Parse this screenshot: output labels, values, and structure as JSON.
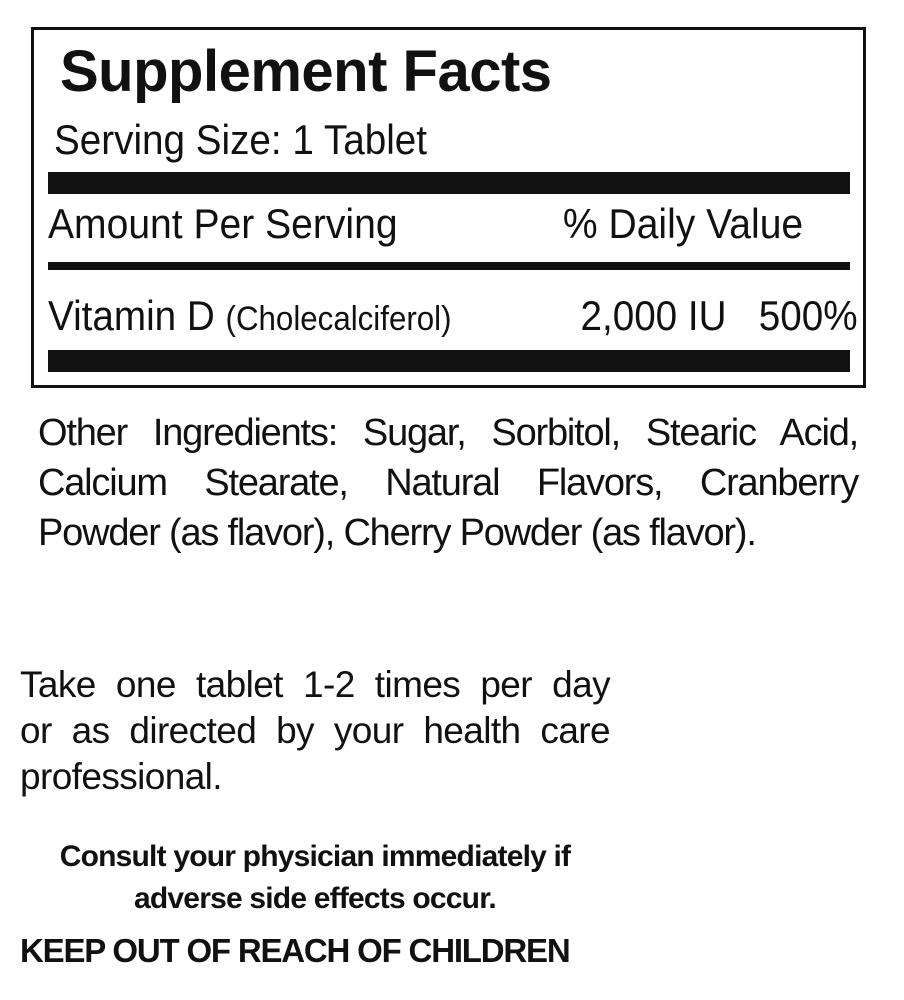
{
  "facts": {
    "title": "Supplement Facts",
    "serving_size": "Serving Size:  1 Tablet",
    "amount_header": "Amount Per Serving",
    "dv_header": "% Daily Value",
    "nutrients": [
      {
        "name": "Vitamin D",
        "form": "(Cholecalciferol)",
        "amount": "2,000 IU",
        "dv": "500%"
      }
    ]
  },
  "other_ingredients": [
    "Other Ingredients:  Sugar, Sorbitol, Stearic Acid,",
    "Calcium Stearate, Natural Flavors, Cranberry",
    "Powder (as flavor), Cherry Powder (as flavor)."
  ],
  "directions": [
    "Take one tablet 1-2 times per day",
    "or as directed by your health care",
    "professional."
  ],
  "warning": [
    "Consult your physician immediately if",
    "adverse side effects occur."
  ],
  "keep_out": "KEEP OUT OF REACH OF CHILDREN"
}
